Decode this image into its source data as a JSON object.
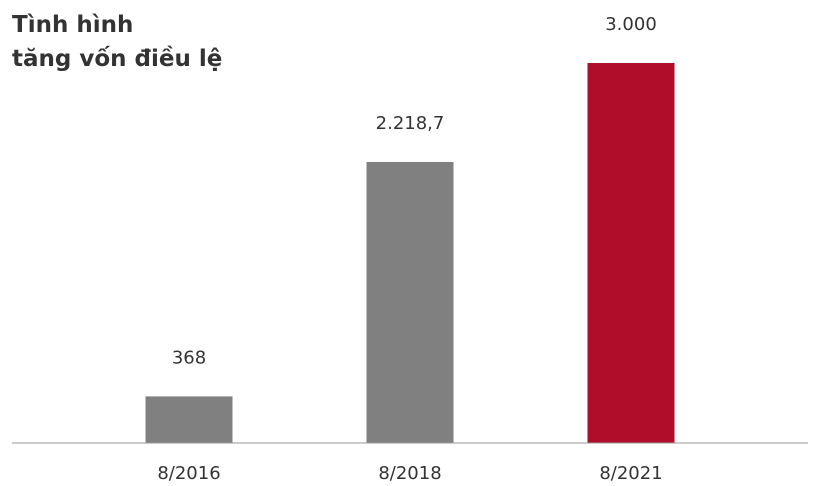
{
  "chart_data": {
    "type": "bar",
    "title_lines": [
      "Tình hình",
      "tăng vốn điều lệ"
    ],
    "categories": [
      "8/2016",
      "8/2018",
      "8/2021"
    ],
    "values": [
      368,
      2218.7,
      3000
    ],
    "value_labels": [
      "368",
      "2.218,7",
      "3.000"
    ],
    "colors": [
      "#808080",
      "#808080",
      "#b00d2b"
    ]
  }
}
